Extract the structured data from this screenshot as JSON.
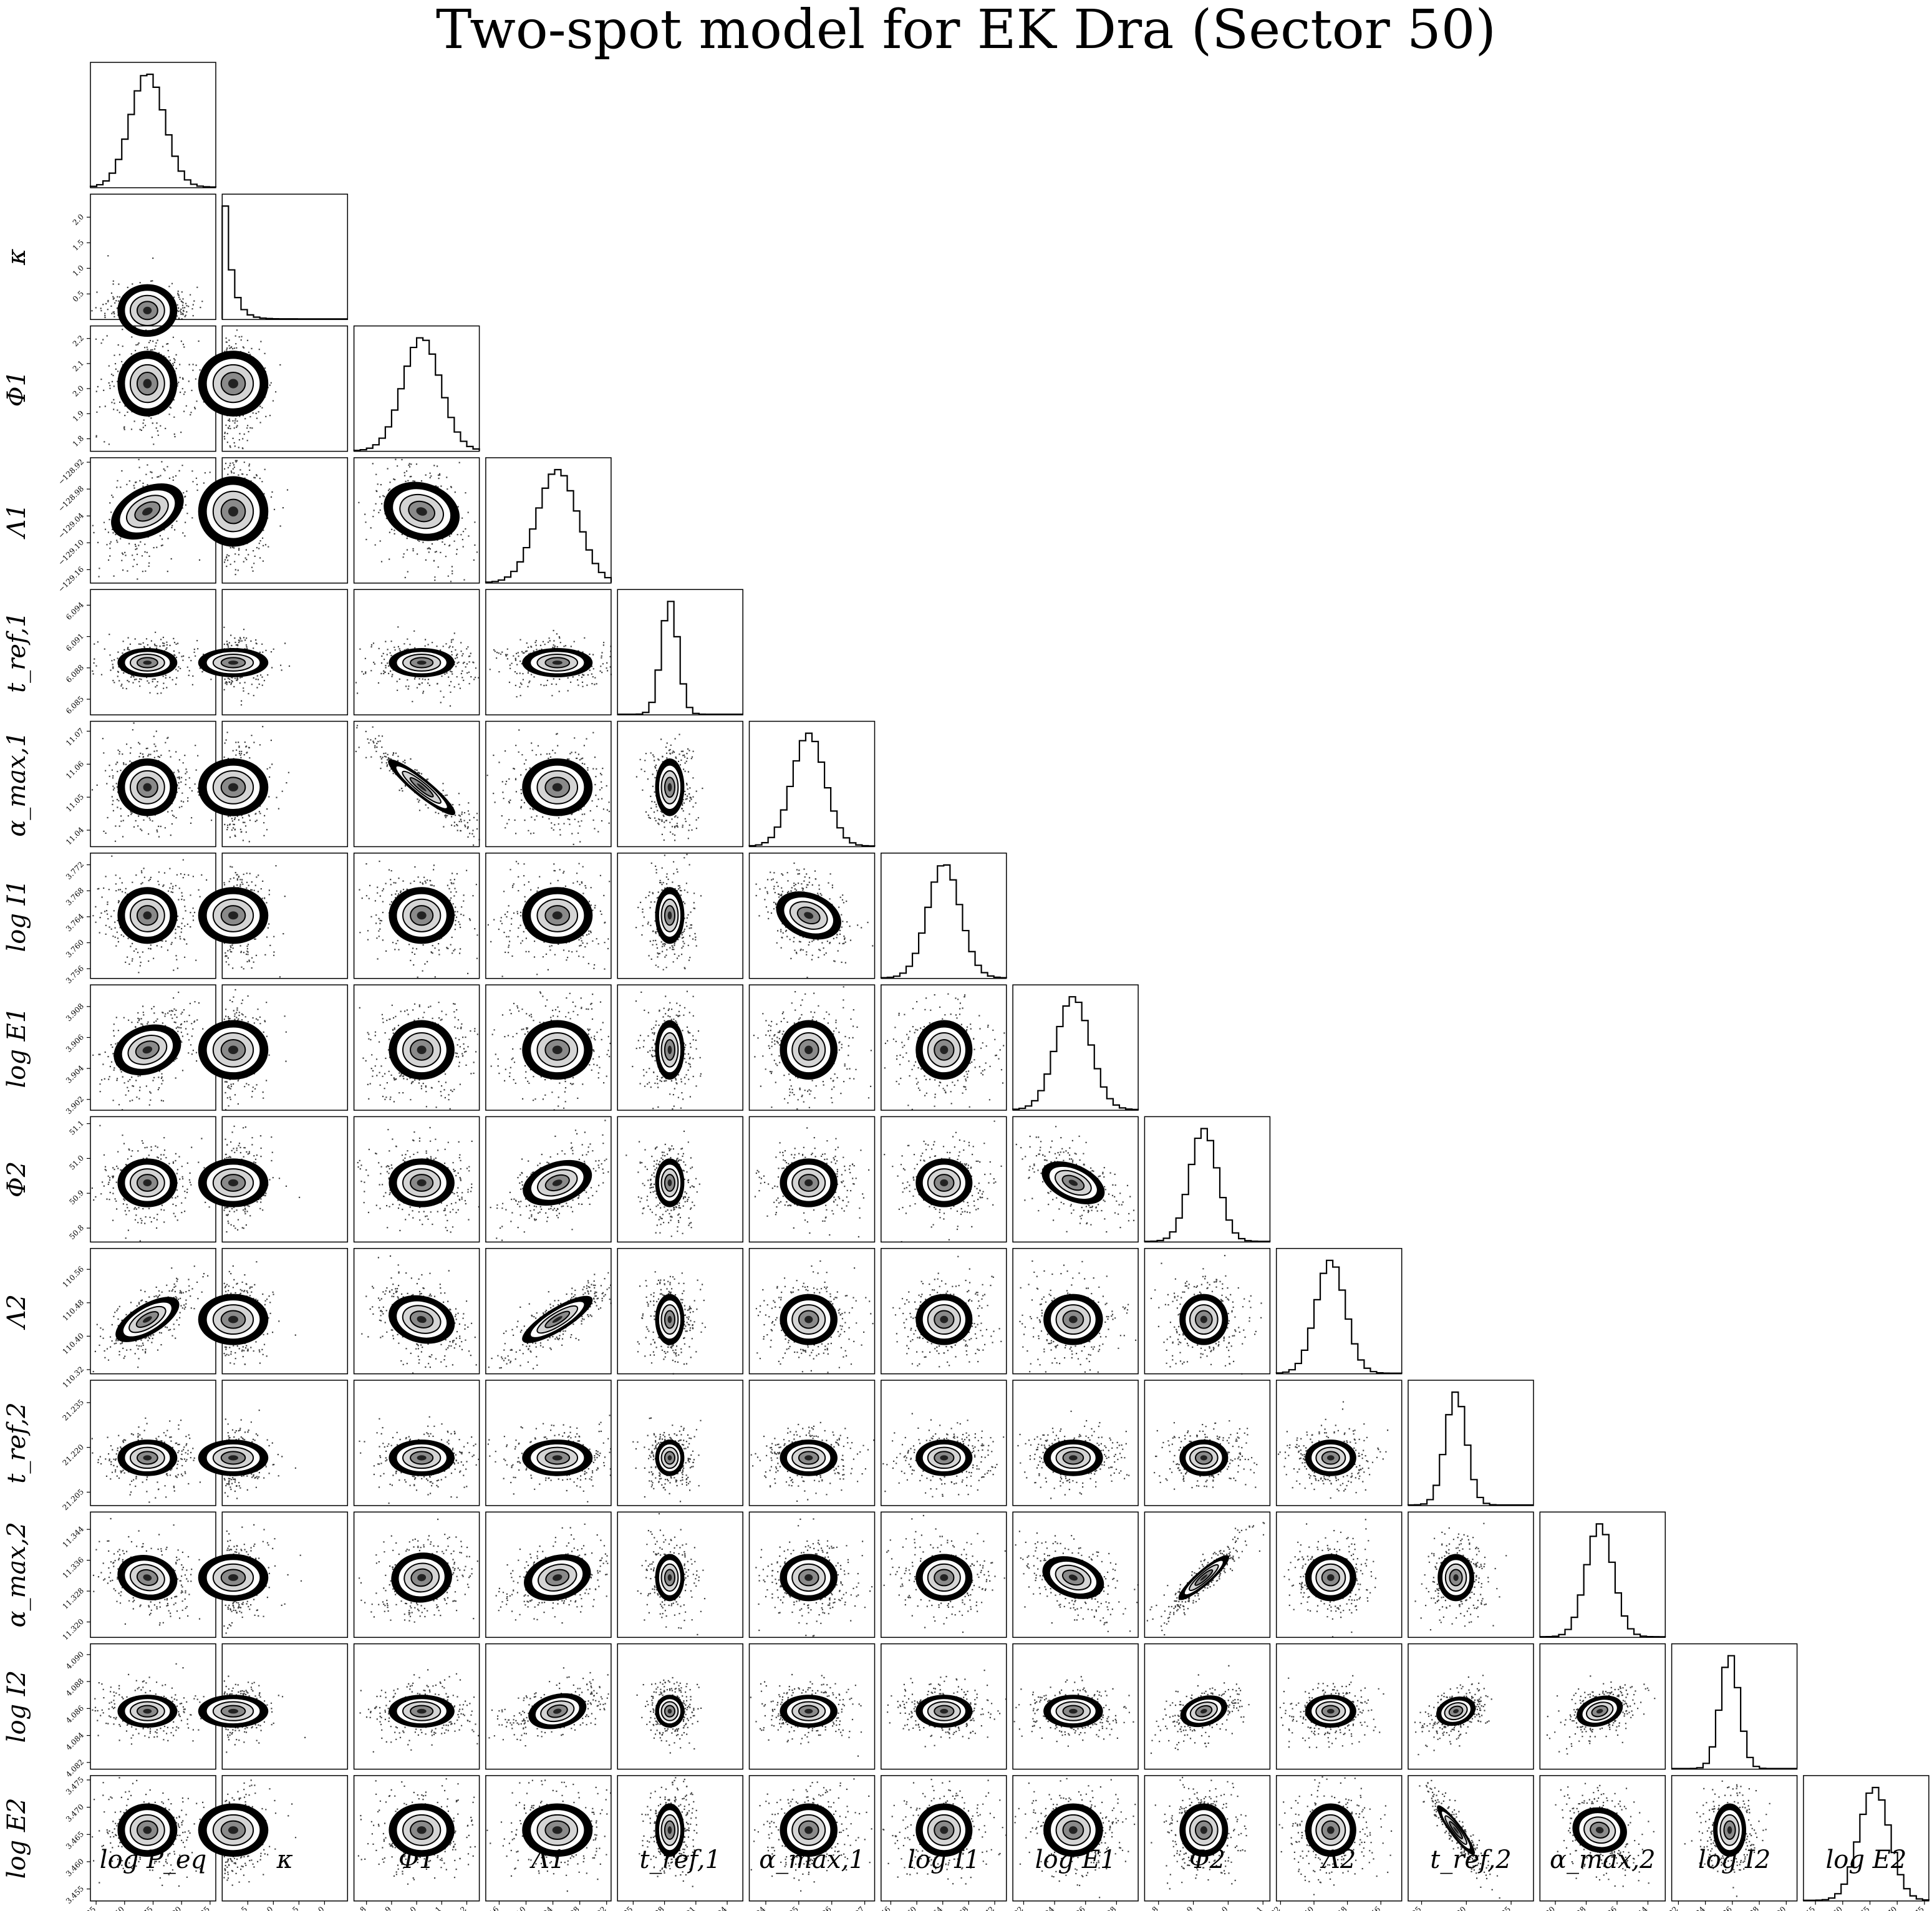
{
  "title": "Two-spot model for EK Dra (Sector 50)",
  "chart_data": {
    "type": "scatter",
    "title": "Two-spot model for EK Dra (Sector 50)",
    "layout": "corner plot: 1D marginal histograms on the diagonal, 2D posterior density (points + contours) below the diagonal",
    "parameters": [
      {
        "label": "log P_eq",
        "center": 0.97107,
        "sigma": 1.5e-05,
        "ticks": [
          "0.971025",
          "0.971050",
          "0.971075",
          "0.971100",
          "0.971125"
        ],
        "tick_values": [
          0.971025,
          0.97105,
          0.971075,
          0.9711,
          0.971125
        ],
        "range": [
          0.97102,
          0.97113
        ],
        "show_ylabel": false
      },
      {
        "label": "κ",
        "center": 0.08,
        "sigma": 0.25,
        "ticks": [
          "0.5",
          "1.0",
          "1.5",
          "2.0"
        ],
        "tick_values": [
          0.5,
          1.0,
          1.5,
          2.0
        ],
        "range": [
          0.0,
          2.45
        ],
        "offset_text": "×10⁻⁶",
        "skewed": true
      },
      {
        "label": "Φ1",
        "center": 2.02,
        "sigma": 0.075,
        "ticks": [
          "1.8",
          "1.9",
          "2.0",
          "2.1",
          "2.2"
        ],
        "tick_values": [
          1.8,
          1.9,
          2.0,
          2.1,
          2.2
        ],
        "range": [
          1.75,
          2.25
        ]
      },
      {
        "label": "Λ1",
        "center": -129.03,
        "sigma": 0.045,
        "ticks": [
          "−129.16",
          "−129.10",
          "−129.04",
          "−128.98",
          "−128.92"
        ],
        "tick_values": [
          -129.16,
          -129.1,
          -129.04,
          -128.98,
          -128.92
        ],
        "range": [
          -129.19,
          -128.91
        ]
      },
      {
        "label": "t_ref,1",
        "center": 6.0885,
        "sigma": 0.0008,
        "ticks": [
          "6.085",
          "6.088",
          "6.091",
          "6.094"
        ],
        "tick_values": [
          6.085,
          6.088,
          6.091,
          6.094
        ],
        "range": [
          6.0835,
          6.0955
        ]
      },
      {
        "label": "α_max,1",
        "center": 11.053,
        "sigma": 0.005,
        "ticks": [
          "11.04",
          "11.05",
          "11.06",
          "11.07"
        ],
        "tick_values": [
          11.04,
          11.05,
          11.06,
          11.07
        ],
        "range": [
          11.035,
          11.073
        ]
      },
      {
        "label": "log I1",
        "center": 3.7642,
        "sigma": 0.0025,
        "ticks": [
          "3.756",
          "3.760",
          "3.764",
          "3.768",
          "3.772"
        ],
        "tick_values": [
          3.756,
          3.76,
          3.764,
          3.768,
          3.772
        ],
        "range": [
          3.7545,
          3.7738
        ]
      },
      {
        "label": "log E1",
        "center": 3.9052,
        "sigma": 0.0011,
        "ticks": [
          "3.902",
          "3.904",
          "3.906",
          "3.908"
        ],
        "tick_values": [
          3.902,
          3.904,
          3.906,
          3.908
        ],
        "range": [
          3.9013,
          3.9094
        ]
      },
      {
        "label": "Φ2",
        "center": 50.93,
        "sigma": 0.04,
        "ticks": [
          "50.8",
          "50.9",
          "51.0",
          "51.1"
        ],
        "tick_values": [
          50.8,
          50.9,
          51.0,
          51.1
        ],
        "range": [
          50.76,
          51.12
        ]
      },
      {
        "label": "Λ2",
        "center": 110.44,
        "sigma": 0.035,
        "ticks": [
          "110.32",
          "110.40",
          "110.48",
          "110.56"
        ],
        "tick_values": [
          110.32,
          110.4,
          110.48,
          110.56
        ],
        "range": [
          110.31,
          110.61
        ]
      },
      {
        "label": "t_ref,2",
        "center": 21.2165,
        "sigma": 0.0035,
        "ticks": [
          "21.205",
          "21.220",
          "21.235"
        ],
        "tick_values": [
          21.205,
          21.22,
          21.235
        ],
        "range": [
          21.2005,
          21.2425
        ]
      },
      {
        "label": "α_max,2",
        "center": 11.3315,
        "sigma": 0.0035,
        "ticks": [
          "11.320",
          "11.328",
          "11.336",
          "11.344"
        ],
        "tick_values": [
          11.32,
          11.328,
          11.336,
          11.344
        ],
        "range": [
          11.316,
          11.3485
        ]
      },
      {
        "label": "log I2",
        "center": 4.0858,
        "sigma": 0.0007,
        "ticks": [
          "4.082",
          "4.084",
          "4.086",
          "4.088",
          "4.090"
        ],
        "tick_values": [
          4.082,
          4.084,
          4.086,
          4.088,
          4.09
        ],
        "range": [
          4.0815,
          4.0908
        ]
      },
      {
        "label": "log E2",
        "center": 3.4658,
        "sigma": 0.0028,
        "ticks": [
          "3.455",
          "3.460",
          "3.465",
          "3.470",
          "3.475"
        ],
        "tick_values": [
          3.455,
          3.46,
          3.465,
          3.47,
          3.475
        ],
        "range": [
          3.4528,
          3.4758
        ]
      }
    ],
    "correlations": [
      {
        "pair": [
          "Λ1",
          "log P_eq"
        ],
        "rho": 0.45
      },
      {
        "pair": [
          "Λ2",
          "log P_eq"
        ],
        "rho": 0.7
      },
      {
        "pair": [
          "log E1",
          "log P_eq"
        ],
        "rho": 0.35
      },
      {
        "pair": [
          "Λ1",
          "Φ1"
        ],
        "rho": -0.3
      },
      {
        "pair": [
          "α_max,1",
          "Φ1"
        ],
        "rho": -0.93
      },
      {
        "pair": [
          "log I1",
          "α_max,1"
        ],
        "rho": -0.4
      },
      {
        "pair": [
          "Φ2",
          "Λ1"
        ],
        "rho": 0.5
      },
      {
        "pair": [
          "Φ2",
          "log E1"
        ],
        "rho": -0.55
      },
      {
        "pair": [
          "Λ2",
          "Φ1"
        ],
        "rho": -0.35
      },
      {
        "pair": [
          "Λ2",
          "Λ1"
        ],
        "rho": 0.85
      },
      {
        "pair": [
          "α_max,2",
          "Φ1"
        ],
        "rho": 0.2
      },
      {
        "pair": [
          "α_max,2",
          "Λ1"
        ],
        "rho": 0.4
      },
      {
        "pair": [
          "α_max,2",
          "log E1"
        ],
        "rho": -0.45
      },
      {
        "pair": [
          "α_max,2",
          "Φ2"
        ],
        "rho": 0.9
      },
      {
        "pair": [
          "α_max,2",
          "log P_eq"
        ],
        "rho": -0.3
      },
      {
        "pair": [
          "log I2",
          "Λ1"
        ],
        "rho": 0.5
      },
      {
        "pair": [
          "log I2",
          "Φ2"
        ],
        "rho": 0.45
      },
      {
        "pair": [
          "log I2",
          "t_ref,2"
        ],
        "rho": 0.35
      },
      {
        "pair": [
          "log I2",
          "α_max,2"
        ],
        "rho": 0.45
      },
      {
        "pair": [
          "log E2",
          "t_ref,2"
        ],
        "rho": -0.92
      },
      {
        "pair": [
          "log E2",
          "α_max,2"
        ],
        "rho": -0.2
      }
    ],
    "contour_levels": 3,
    "grid": false
  }
}
